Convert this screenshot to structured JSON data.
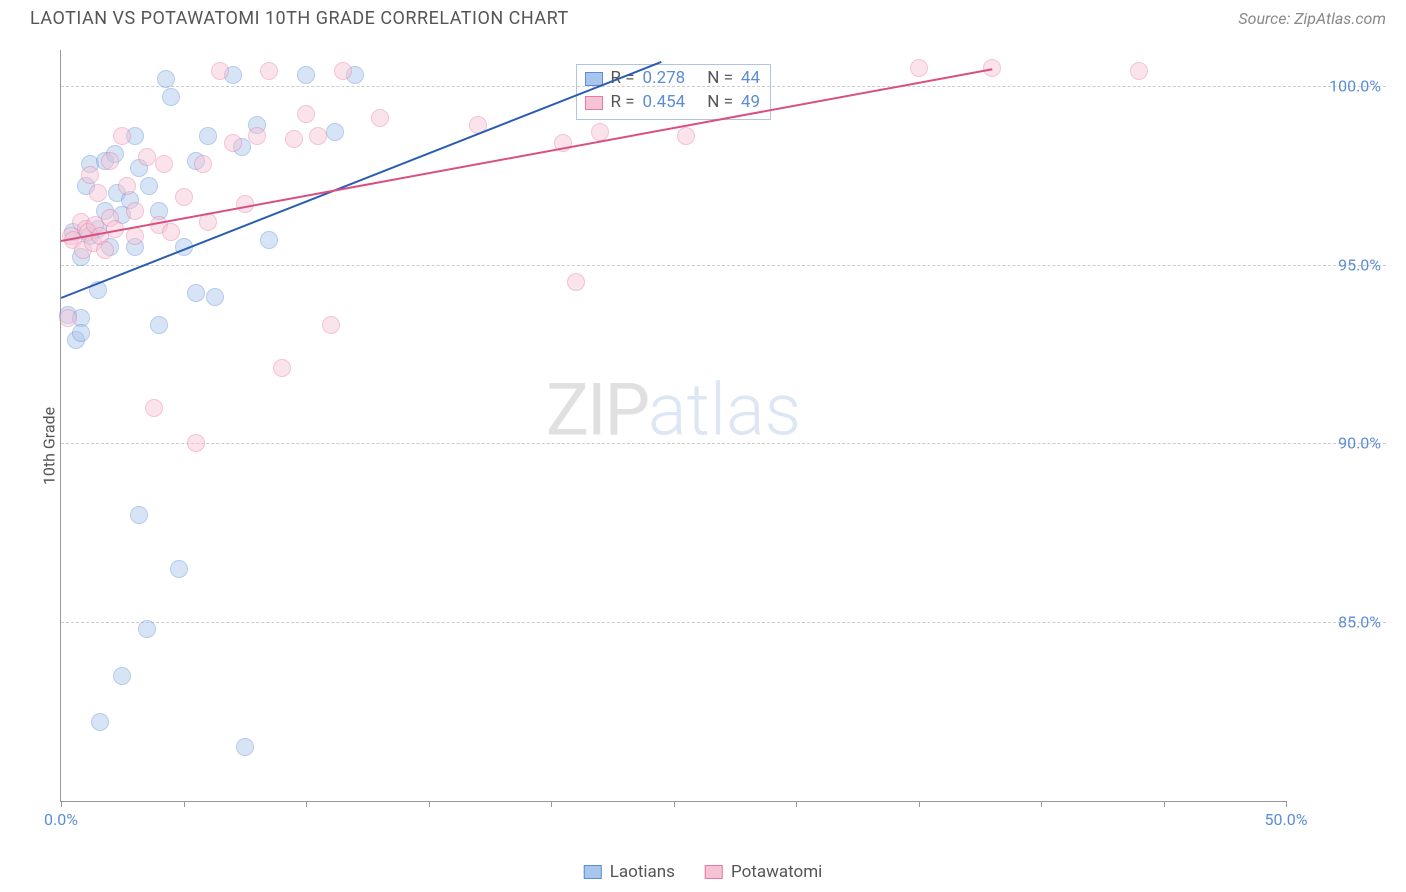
{
  "header": {
    "title": "LAOTIAN VS POTAWATOMI 10TH GRADE CORRELATION CHART",
    "source": "Source: ZipAtlas.com"
  },
  "watermark": {
    "zip": "ZIP",
    "atlas": "atlas"
  },
  "chart": {
    "type": "scatter",
    "y_axis_label": "10th Grade",
    "background_color": "#ffffff",
    "grid_color": "#cccccc",
    "axis_color": "#999999",
    "tick_label_color": "#5b8dd6",
    "label_fontsize": 16,
    "xlim": [
      0,
      50
    ],
    "ylim": [
      80,
      101
    ],
    "x_ticks": [
      0,
      5,
      10,
      15,
      20,
      25,
      30,
      35,
      40,
      45,
      50
    ],
    "x_tick_labels": {
      "0": "0.0%",
      "50": "50.0%"
    },
    "y_ticks": [
      85,
      90,
      95,
      100
    ],
    "y_tick_labels": {
      "85": "85.0%",
      "90": "90.0%",
      "95": "95.0%",
      "100": "100.0%"
    },
    "marker_radius": 9,
    "marker_opacity": 0.45,
    "marker_stroke_opacity": 0.9,
    "line_width": 2,
    "series": [
      {
        "name": "Laotians",
        "color_stroke": "#5b8dd6",
        "color_fill": "#a8c5ec",
        "trend_color": "#2a5db0",
        "R": "0.278",
        "N": "44",
        "trend": {
          "x1": 0,
          "y1": 94.1,
          "x2": 24.5,
          "y2": 100.7
        },
        "points": [
          [
            0.3,
            93.6
          ],
          [
            0.5,
            95.9
          ],
          [
            0.6,
            92.9
          ],
          [
            0.8,
            95.2
          ],
          [
            0.8,
            93.5
          ],
          [
            0.8,
            93.1
          ],
          [
            1.0,
            97.2
          ],
          [
            1.2,
            95.8
          ],
          [
            1.2,
            97.8
          ],
          [
            1.5,
            96.0
          ],
          [
            1.5,
            94.3
          ],
          [
            1.6,
            82.2
          ],
          [
            1.8,
            97.9
          ],
          [
            1.8,
            96.5
          ],
          [
            2.0,
            95.5
          ],
          [
            2.2,
            98.1
          ],
          [
            2.3,
            97.0
          ],
          [
            2.5,
            96.4
          ],
          [
            2.5,
            83.5
          ],
          [
            2.8,
            96.8
          ],
          [
            3.0,
            95.5
          ],
          [
            3.0,
            98.6
          ],
          [
            3.2,
            88.0
          ],
          [
            3.2,
            97.7
          ],
          [
            3.5,
            84.8
          ],
          [
            3.6,
            97.2
          ],
          [
            4.0,
            96.5
          ],
          [
            4.0,
            93.3
          ],
          [
            4.3,
            100.2
          ],
          [
            4.5,
            99.7
          ],
          [
            4.8,
            86.5
          ],
          [
            5.0,
            95.5
          ],
          [
            5.5,
            97.9
          ],
          [
            5.5,
            94.2
          ],
          [
            6.0,
            98.6
          ],
          [
            6.3,
            94.1
          ],
          [
            7.0,
            100.3
          ],
          [
            7.4,
            98.3
          ],
          [
            7.5,
            81.5
          ],
          [
            8.0,
            98.9
          ],
          [
            8.5,
            95.7
          ],
          [
            10.0,
            100.3
          ],
          [
            11.2,
            98.7
          ],
          [
            12.0,
            100.3
          ]
        ]
      },
      {
        "name": "Potawatomi",
        "color_stroke": "#e57ba2",
        "color_fill": "#f5c3d5",
        "trend_color": "#d94f82",
        "R": "0.454",
        "N": "49",
        "trend": {
          "x1": 0,
          "y1": 95.7,
          "x2": 38,
          "y2": 100.5
        },
        "points": [
          [
            0.3,
            93.5
          ],
          [
            0.4,
            95.8
          ],
          [
            0.5,
            95.7
          ],
          [
            0.8,
            96.2
          ],
          [
            0.9,
            95.4
          ],
          [
            1.0,
            96.0
          ],
          [
            1.1,
            95.9
          ],
          [
            1.2,
            97.5
          ],
          [
            1.3,
            95.6
          ],
          [
            1.4,
            96.1
          ],
          [
            1.5,
            97.0
          ],
          [
            1.6,
            95.8
          ],
          [
            1.8,
            95.4
          ],
          [
            2.0,
            96.3
          ],
          [
            2.0,
            97.9
          ],
          [
            2.2,
            96.0
          ],
          [
            2.5,
            98.6
          ],
          [
            2.7,
            97.2
          ],
          [
            3.0,
            96.5
          ],
          [
            3.0,
            95.8
          ],
          [
            3.5,
            98.0
          ],
          [
            3.8,
            91.0
          ],
          [
            4.0,
            96.1
          ],
          [
            4.2,
            97.8
          ],
          [
            4.5,
            95.9
          ],
          [
            5.0,
            96.9
          ],
          [
            5.5,
            90.0
          ],
          [
            5.8,
            97.8
          ],
          [
            6.0,
            96.2
          ],
          [
            6.5,
            100.4
          ],
          [
            7.0,
            98.4
          ],
          [
            7.5,
            96.7
          ],
          [
            8.0,
            98.6
          ],
          [
            8.5,
            100.4
          ],
          [
            9.0,
            92.1
          ],
          [
            9.5,
            98.5
          ],
          [
            10.0,
            99.2
          ],
          [
            10.5,
            98.6
          ],
          [
            11.0,
            93.3
          ],
          [
            11.5,
            100.4
          ],
          [
            13.0,
            99.1
          ],
          [
            17.0,
            98.9
          ],
          [
            20.5,
            98.4
          ],
          [
            21.0,
            94.5
          ],
          [
            22.0,
            98.7
          ],
          [
            25.5,
            98.6
          ],
          [
            35.0,
            100.5
          ],
          [
            38.0,
            100.5
          ],
          [
            44.0,
            100.4
          ]
        ]
      }
    ],
    "legend_top": {
      "r_label": "R  =",
      "n_label": "N  ="
    },
    "legend_bottom": {
      "laotians": "Laotians",
      "potawatomi": "Potawatomi"
    }
  }
}
